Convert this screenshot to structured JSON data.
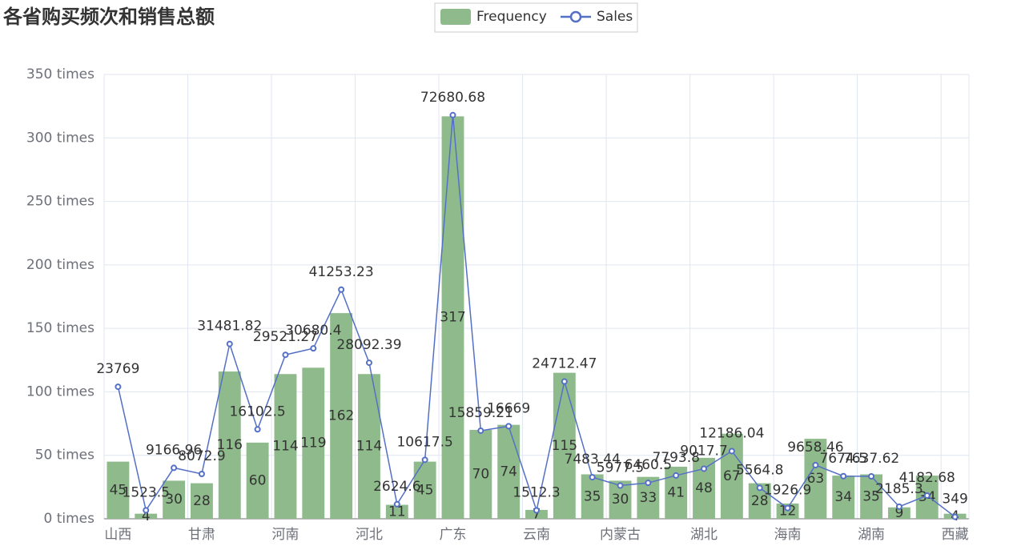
{
  "chart_data": {
    "type": "bar",
    "title": "各省购买频次和销售总额",
    "categories": [
      "山西",
      null,
      null,
      "甘肃",
      null,
      null,
      "河南",
      null,
      null,
      "河北",
      null,
      null,
      "广东",
      null,
      null,
      "云南",
      null,
      null,
      "内蒙古",
      null,
      null,
      "湖北",
      null,
      null,
      "海南",
      null,
      null,
      "湖南",
      null,
      null,
      "西藏"
    ],
    "series": [
      {
        "name": "Frequency",
        "type": "bar",
        "color": "#8fbb8c",
        "axis": "y",
        "values": [
          45,
          4,
          30,
          28,
          116,
          60,
          114,
          119,
          162,
          114,
          11,
          45,
          317,
          70,
          74,
          7,
          115,
          35,
          30,
          33,
          41,
          48,
          67,
          28,
          12,
          63,
          34,
          35,
          9,
          34,
          4
        ]
      },
      {
        "name": "Sales",
        "type": "line",
        "color": "#5470c6",
        "axis": "y2",
        "values": [
          23769,
          1523.5,
          9166.96,
          8072.9,
          31481.82,
          16102.5,
          29521.27,
          30680.4,
          41253.23,
          28092.39,
          2624.6,
          10617.5,
          72680.68,
          15859.21,
          16669,
          1512.3,
          24712.47,
          7483.44,
          5977.5,
          6460.5,
          7793.8,
          9017.7,
          12186.04,
          5564.8,
          1926.9,
          9658.46,
          7674.5,
          7637.62,
          2185.3,
          4182.68,
          349
        ]
      }
    ],
    "ylim": [
      0,
      350
    ],
    "yticks": [
      {
        "value": 0,
        "label": "0 times"
      },
      {
        "value": 50,
        "label": "50 times"
      },
      {
        "value": 100,
        "label": "100 times"
      },
      {
        "value": 150,
        "label": "150 times"
      },
      {
        "value": 200,
        "label": "200 times"
      },
      {
        "value": 250,
        "label": "250 times"
      },
      {
        "value": 300,
        "label": "300 times"
      },
      {
        "value": 350,
        "label": "350 times"
      }
    ],
    "y2lim": [
      0,
      80000
    ],
    "grid": true,
    "legend": "top"
  }
}
